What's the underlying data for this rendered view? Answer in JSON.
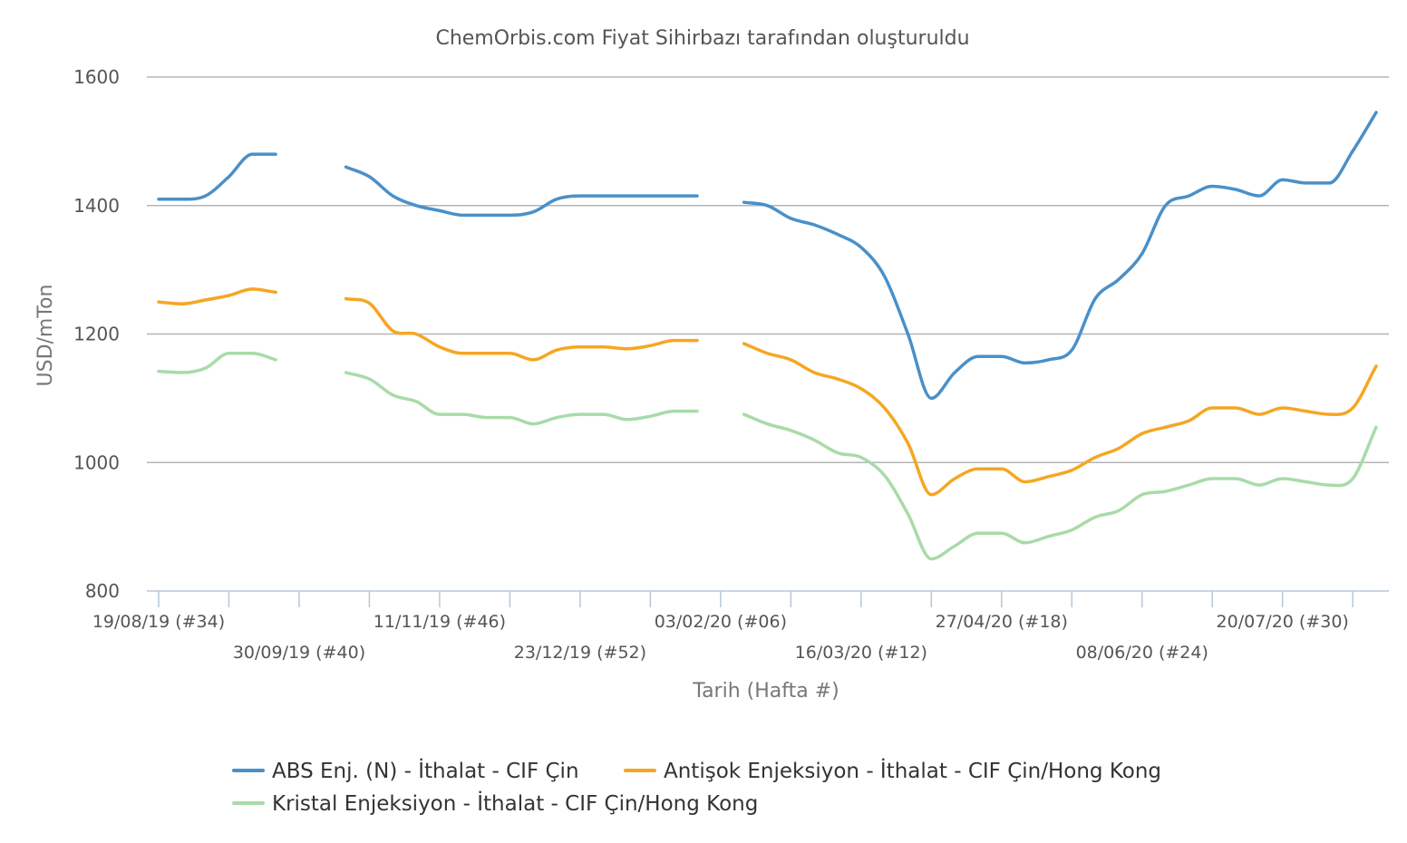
{
  "chart_data": {
    "type": "line",
    "title": "ChemOrbis.com Fiyat Sihirbazı tarafından oluşturuldu",
    "xlabel": "Tarih (Hafta #)",
    "ylabel": "USD/mTon",
    "ylim": [
      800,
      1600
    ],
    "yticks": [
      800,
      1000,
      1200,
      1400,
      1600
    ],
    "grid": true,
    "legend_position": "bottom",
    "x_ticks_row1": [
      "19/08/19 (#34)",
      "11/11/19 (#46)",
      "03/02/20 (#06)",
      "27/04/20 (#18)",
      "20/07/20 (#30)"
    ],
    "x_ticks_row2": [
      "30/09/19 (#40)",
      "23/12/19 (#52)",
      "16/03/20 (#12)",
      "08/06/20 (#24)"
    ],
    "x": [
      "19/08/19",
      "26/08/19",
      "02/09/19",
      "09/09/19",
      "16/09/19",
      "23/09/19",
      "30/09/19",
      "07/10/19",
      "14/10/19",
      "21/10/19",
      "28/10/19",
      "04/11/19",
      "11/11/19",
      "18/11/19",
      "25/11/19",
      "02/12/19",
      "09/12/19",
      "16/12/19",
      "23/12/19",
      "30/12/19",
      "06/01/20",
      "13/01/20",
      "20/01/20",
      "27/01/20",
      "03/02/20",
      "10/02/20",
      "17/02/20",
      "24/02/20",
      "02/03/20",
      "09/03/20",
      "16/03/20",
      "23/03/20",
      "30/03/20",
      "06/04/20",
      "13/04/20",
      "20/04/20",
      "27/04/20",
      "04/05/20",
      "11/05/20",
      "18/05/20",
      "25/05/20",
      "01/06/20",
      "08/06/20",
      "15/06/20",
      "22/06/20",
      "29/06/20",
      "06/07/20",
      "13/07/20",
      "20/07/20",
      "27/07/20",
      "03/08/20",
      "10/08/20",
      "17/08/20"
    ],
    "series": [
      {
        "name": "ABS Enj. (N) - İthalat - CIF Çin",
        "color": "#4a90c8",
        "values": [
          1410,
          1410,
          1415,
          1445,
          1480,
          1480,
          null,
          null,
          1460,
          1445,
          1415,
          1400,
          1392,
          1385,
          1385,
          1385,
          1390,
          1410,
          1415,
          1415,
          1415,
          1415,
          1415,
          1415,
          null,
          1405,
          1400,
          1380,
          1370,
          1355,
          1335,
          1290,
          1200,
          1100,
          1140,
          1165,
          1165,
          1155,
          1160,
          1175,
          1255,
          1285,
          1325,
          1400,
          1415,
          1430,
          1425,
          1415,
          1440,
          1435,
          1435,
          1485,
          1545
        ]
      },
      {
        "name": "Antişok Enjeksiyon - İthalat - CIF Çin/Hong Kong",
        "color": "#f5a623",
        "values": [
          1250,
          1247,
          1253,
          1260,
          1270,
          1265,
          null,
          null,
          1255,
          1248,
          1205,
          1200,
          1180,
          1170,
          1170,
          1170,
          1160,
          1175,
          1180,
          1180,
          1177,
          1182,
          1190,
          1190,
          null,
          1185,
          1170,
          1160,
          1140,
          1130,
          1115,
          1085,
          1030,
          950,
          975,
          990,
          990,
          970,
          978,
          988,
          1008,
          1022,
          1045,
          1055,
          1065,
          1085,
          1085,
          1075,
          1085,
          1080,
          1075,
          1085,
          1150
        ]
      },
      {
        "name": "Kristal Enjeksiyon - İthalat - CIF Çin/Hong Kong",
        "color": "#a8dba8",
        "values": [
          1142,
          1140,
          1147,
          1170,
          1170,
          1160,
          null,
          null,
          1140,
          1130,
          1105,
          1095,
          1075,
          1075,
          1070,
          1070,
          1060,
          1070,
          1075,
          1075,
          1067,
          1072,
          1080,
          1080,
          null,
          1075,
          1060,
          1050,
          1035,
          1015,
          1008,
          980,
          920,
          850,
          870,
          890,
          890,
          875,
          885,
          895,
          915,
          925,
          950,
          955,
          965,
          975,
          975,
          965,
          975,
          970,
          965,
          975,
          1055
        ]
      }
    ]
  }
}
